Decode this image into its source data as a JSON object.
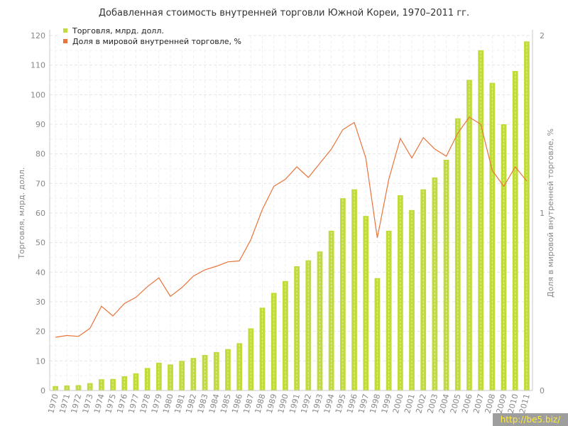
{
  "chart_data": {
    "type": "bar",
    "title": "Добавленная стоимость внутренней торговли Южной Кореи, 1970–2011 гг.",
    "ylabel": "Торговля, млрд. долл.",
    "y2label": "Доля в мировой внутренней торговле, %",
    "ylim": [
      0,
      120
    ],
    "y2lim": [
      0,
      2
    ],
    "yticks": [
      "0",
      "10",
      "20",
      "30",
      "40",
      "50",
      "60",
      "70",
      "80",
      "90",
      "100",
      "110",
      "120"
    ],
    "y2ticks": [
      "0",
      "1",
      "2"
    ],
    "grid": true,
    "legend_position": "top-left",
    "categories": [
      "1970",
      "1971",
      "1972",
      "1973",
      "1974",
      "1975",
      "1976",
      "1977",
      "1978",
      "1979",
      "1980",
      "1981",
      "1982",
      "1983",
      "1984",
      "1985",
      "1986",
      "1987",
      "1988",
      "1989",
      "1990",
      "1991",
      "1992",
      "1993",
      "1994",
      "1995",
      "1996",
      "1997",
      "1998",
      "1999",
      "2000",
      "2001",
      "2002",
      "2003",
      "2004",
      "2005",
      "2006",
      "2007",
      "2008",
      "2009",
      "2010",
      "2011"
    ],
    "series": [
      {
        "name": "Торговля, млрд. долл.",
        "type": "bar",
        "axis": "left",
        "color": "#c0dc3c",
        "values": [
          1.5,
          1.7,
          1.8,
          2.5,
          3.8,
          3.9,
          4.8,
          5.8,
          7.6,
          9.4,
          8.8,
          10,
          11,
          12,
          13,
          14,
          16,
          21,
          28,
          33,
          37,
          42,
          44,
          47,
          54,
          65,
          68,
          59,
          38,
          54,
          66,
          61,
          68,
          72,
          78,
          92,
          105,
          115,
          104,
          90,
          108,
          118
        ]
      },
      {
        "name": "Доля в мировой внутренней торговле, %",
        "type": "line",
        "axis": "right",
        "color": "#e8743b",
        "values": [
          0.3,
          0.31,
          0.305,
          0.35,
          0.475,
          0.42,
          0.49,
          0.525,
          0.585,
          0.635,
          0.53,
          0.58,
          0.645,
          0.68,
          0.7,
          0.725,
          0.73,
          0.85,
          1.02,
          1.15,
          1.19,
          1.26,
          1.2,
          1.28,
          1.36,
          1.47,
          1.51,
          1.31,
          0.86,
          1.19,
          1.42,
          1.31,
          1.425,
          1.36,
          1.32,
          1.45,
          1.54,
          1.5,
          1.24,
          1.15,
          1.26,
          1.18
        ]
      }
    ]
  },
  "watermark": "http://be5.biz/"
}
